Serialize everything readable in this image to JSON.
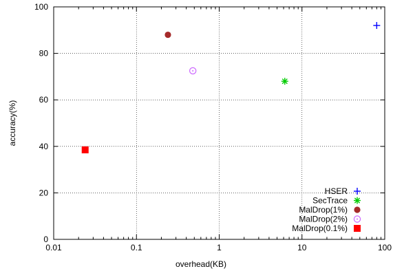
{
  "chart_data": {
    "type": "scatter",
    "title": "",
    "xlabel": "overhead(KB)",
    "ylabel": "accuracy(%)",
    "x_scale": "log",
    "xlim": [
      0.01,
      100
    ],
    "ylim": [
      0,
      100
    ],
    "x_ticks": [
      "0.01",
      "0.1",
      "1",
      "10",
      "100"
    ],
    "y_ticks": [
      "0",
      "20",
      "40",
      "60",
      "80",
      "100"
    ],
    "grid": true,
    "legend_position": "bottom-right",
    "series": [
      {
        "name": "HSER",
        "marker": "plus",
        "color": "#0000ff",
        "points": [
          {
            "x": 80,
            "y": 92
          }
        ]
      },
      {
        "name": "SecTrace",
        "marker": "asterisk",
        "color": "#00cc00",
        "points": [
          {
            "x": 6.2,
            "y": 68
          }
        ]
      },
      {
        "name": "MalDrop(1%)",
        "marker": "filled-circle",
        "color": "#a52a2a",
        "points": [
          {
            "x": 0.24,
            "y": 88
          }
        ]
      },
      {
        "name": "MalDrop(2%)",
        "marker": "dot-circle",
        "color": "#cc66ff",
        "points": [
          {
            "x": 0.48,
            "y": 72.5
          }
        ]
      },
      {
        "name": "MalDrop(0.1%)",
        "marker": "filled-square",
        "color": "#ff0000",
        "points": [
          {
            "x": 0.024,
            "y": 38.5
          }
        ]
      }
    ]
  }
}
